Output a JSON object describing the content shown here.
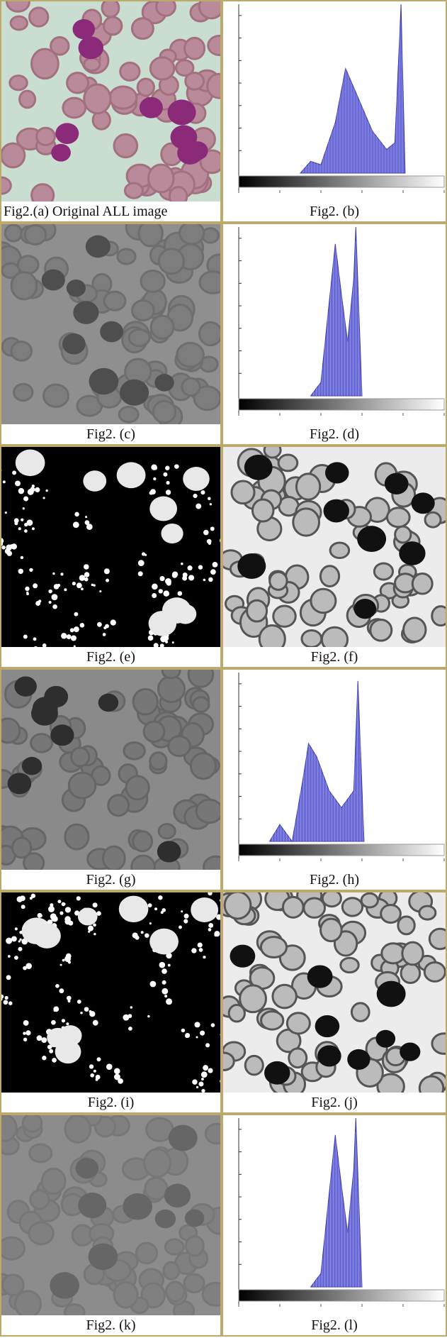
{
  "rows": [
    [
      "Fig2.(a) Original ALL image",
      "Fig2. (b)"
    ],
    [
      "Fig2. (c)",
      "Fig2. (d)"
    ],
    [
      "Fig2. (e)",
      "Fig2. (f)"
    ],
    [
      "Fig2. (g)",
      "Fig2. (h)"
    ],
    [
      "Fig2. (i)",
      "Fig2. (j)"
    ],
    [
      "Fig2. (k)",
      "Fig2. (l)"
    ]
  ]
}
